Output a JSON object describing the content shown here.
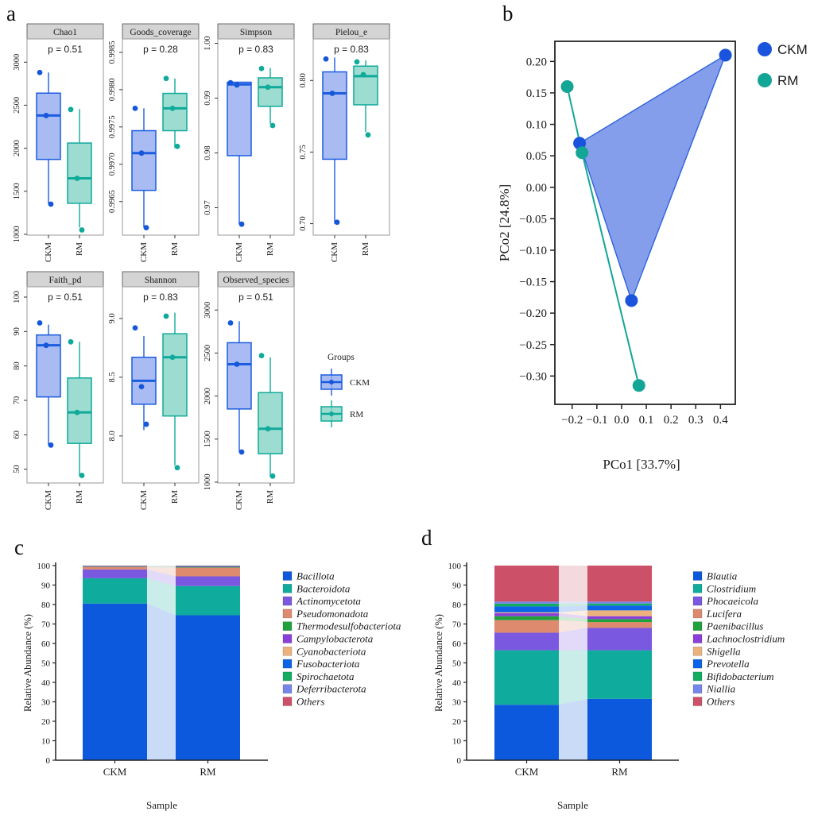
{
  "figure": {
    "panel_labels": {
      "a": "a",
      "b": "b",
      "c": "c",
      "d": "d"
    }
  },
  "groups": {
    "names": [
      "CKM",
      "RM"
    ],
    "colors": {
      "CKM": {
        "stroke": "#1b5ce0",
        "fill": "#93aaf0",
        "point": "#1557d8"
      },
      "RM": {
        "stroke": "#0faa9a",
        "fill": "#85d4c6",
        "point": "#0faa9a"
      }
    }
  },
  "chart_data": [
    {
      "id": "alpha_diversity_boxplots",
      "type": "box",
      "groups": [
        "CKM",
        "RM"
      ],
      "legend": {
        "title": "Groups",
        "items": [
          "CKM",
          "RM"
        ]
      },
      "facets": [
        {
          "title": "Chao1",
          "p_label": "p = 0.51",
          "ylim": [
            990,
            3270
          ],
          "yticks": [
            1000,
            1500,
            2000,
            2500,
            3000
          ],
          "ytick_labels": [
            "1000",
            "1500",
            "2000",
            "2500",
            "3000"
          ],
          "stats": {
            "CKM": {
              "whislo": 1350,
              "q1": 1870,
              "med": 2380,
              "q3": 2640,
              "whishi": 2880,
              "points": [
                2880,
                2380,
                1350
              ]
            },
            "RM": {
              "whislo": 1080,
              "q1": 1360,
              "med": 1650,
              "q3": 2060,
              "whishi": 2455,
              "points": [
                2450,
                1650,
                1050
              ]
            }
          }
        },
        {
          "title": "Goods_coverage",
          "p_label": "p = 0.28",
          "ylim": [
            0.99605,
            0.99868
          ],
          "yticks": [
            0.9965,
            0.997,
            0.9975,
            0.998,
            0.9985
          ],
          "ytick_labels": [
            "0.9965",
            "0.9970",
            "0.9975",
            "0.9980",
            "0.9985"
          ],
          "stats": {
            "CKM": {
              "whislo": 0.99615,
              "q1": 0.99665,
              "med": 0.99715,
              "q3": 0.99745,
              "whishi": 0.99775,
              "points": [
                0.99775,
                0.99715,
                0.99615
              ]
            },
            "RM": {
              "whislo": 0.99722,
              "q1": 0.99745,
              "med": 0.99775,
              "q3": 0.99795,
              "whishi": 0.99815,
              "points": [
                0.99815,
                0.99775,
                0.99724
              ]
            }
          }
        },
        {
          "title": "Simpson",
          "p_label": "p = 0.83",
          "ylim": [
            0.965,
            1.0008
          ],
          "yticks": [
            0.97,
            0.98,
            0.99,
            1.0
          ],
          "ytick_labels": [
            "0.97",
            "0.98",
            "0.99",
            "1.00"
          ],
          "stats": {
            "CKM": {
              "whislo": 0.967,
              "q1": 0.9795,
              "med": 0.9925,
              "q3": 0.9929,
              "whishi": 0.9929,
              "points": [
                0.9928,
                0.9924,
                0.967
              ]
            },
            "RM": {
              "whislo": 0.9853,
              "q1": 0.9885,
              "med": 0.992,
              "q3": 0.9937,
              "whishi": 0.9955,
              "points": [
                0.9954,
                0.992,
                0.985
              ]
            }
          }
        },
        {
          "title": "Pielou_e",
          "p_label": "p = 0.83",
          "ylim": [
            0.692,
            0.829
          ],
          "yticks": [
            0.7,
            0.75,
            0.8
          ],
          "ytick_labels": [
            "0.70",
            "0.75",
            "0.80"
          ],
          "stats": {
            "CKM": {
              "whislo": 0.7,
              "q1": 0.745,
              "med": 0.791,
              "q3": 0.806,
              "whishi": 0.816,
              "points": [
                0.815,
                0.791,
                0.701
              ]
            },
            "RM": {
              "whislo": 0.764,
              "q1": 0.783,
              "med": 0.803,
              "q3": 0.81,
              "whishi": 0.814,
              "points": [
                0.813,
                0.804,
                0.762
              ]
            }
          }
        },
        {
          "title": "Faith_pd",
          "p_label": "p = 0.51",
          "ylim": [
            46,
            103
          ],
          "yticks": [
            50,
            60,
            70,
            80,
            90,
            100
          ],
          "ytick_labels": [
            "50",
            "60",
            "70",
            "80",
            "90",
            "100"
          ],
          "stats": {
            "CKM": {
              "whislo": 57,
              "q1": 71,
              "med": 86,
              "q3": 89,
              "whishi": 92,
              "points": [
                92.5,
                86,
                57
              ]
            },
            "RM": {
              "whislo": 48,
              "q1": 57.5,
              "med": 66.5,
              "q3": 76.5,
              "whishi": 87,
              "points": [
                87,
                66.5,
                48.2
              ]
            }
          }
        },
        {
          "title": "Shannon",
          "p_label": "p = 0.83",
          "ylim": [
            7.6,
            9.27
          ],
          "yticks": [
            8.0,
            8.5,
            9.0
          ],
          "ytick_labels": [
            "8.0",
            "8.5",
            "9.0"
          ],
          "stats": {
            "CKM": {
              "whislo": 8.05,
              "q1": 8.27,
              "med": 8.47,
              "q3": 8.67,
              "whishi": 8.85,
              "points": [
                8.92,
                8.42,
                8.1
              ]
            },
            "RM": {
              "whislo": 7.75,
              "q1": 8.17,
              "med": 8.67,
              "q3": 8.87,
              "whishi": 9.05,
              "points": [
                9.02,
                8.67,
                7.73
              ]
            }
          }
        },
        {
          "title": "Observed_species",
          "p_label": "p = 0.51",
          "ylim": [
            990,
            3270
          ],
          "yticks": [
            1000,
            1500,
            2000,
            2500,
            3000
          ],
          "ytick_labels": [
            "1000",
            "1500",
            "2000",
            "2500",
            "3000"
          ],
          "stats": {
            "CKM": {
              "whislo": 1350,
              "q1": 1850,
              "med": 2370,
              "q3": 2620,
              "whishi": 2870,
              "points": [
                2850,
                2370,
                1350
              ]
            },
            "RM": {
              "whislo": 1060,
              "q1": 1330,
              "med": 1620,
              "q3": 2040,
              "whishi": 2450,
              "points": [
                2470,
                1620,
                1070
              ]
            }
          }
        }
      ]
    },
    {
      "id": "pcoa",
      "type": "scatter",
      "xlabel": "PCo1 [33.7%]",
      "ylabel": "PCo2 [24.8%]",
      "xlim": [
        -0.27,
        0.46
      ],
      "ylim": [
        -0.345,
        0.232
      ],
      "xticks": [
        -0.2,
        -0.1,
        0.0,
        0.1,
        0.2,
        0.3,
        0.4
      ],
      "xtick_labels": [
        "−0.2",
        "−0.1",
        "0.0",
        "0.1",
        "0.2",
        "0.3",
        "0.4"
      ],
      "yticks": [
        0.2,
        0.15,
        0.1,
        0.05,
        0.0,
        -0.05,
        -0.1,
        -0.15,
        -0.2,
        -0.25,
        -0.3
      ],
      "ytick_labels": [
        "0.20",
        "0.15",
        "0.10",
        "0.05",
        "0.00",
        "−0.05",
        "−0.10",
        "−0.15",
        "−0.20",
        "−0.25",
        "−0.30"
      ],
      "series": [
        {
          "name": "CKM",
          "color": "#1b54dc",
          "hull_fill": "#7e99ea",
          "points": [
            [
              0.42,
              0.21
            ],
            [
              -0.17,
              0.07
            ],
            [
              0.04,
              -0.18
            ]
          ]
        },
        {
          "name": "RM",
          "color": "#13a596",
          "points": [
            [
              -0.22,
              0.16
            ],
            [
              -0.16,
              0.055
            ],
            [
              0.07,
              -0.315
            ]
          ]
        }
      ],
      "legend": [
        "CKM",
        "RM"
      ]
    },
    {
      "id": "phylum_relative_abundance",
      "type": "bar",
      "stacked": true,
      "categories": [
        "CKM",
        "RM"
      ],
      "xlabel": "Sample",
      "ylabel": "Relative Abundance (%)",
      "ylim": [
        0,
        100
      ],
      "yticks": [
        0,
        10,
        20,
        30,
        40,
        50,
        60,
        70,
        80,
        90,
        100
      ],
      "series": [
        {
          "name": "Bacillota",
          "color": "#0c59dd",
          "values": [
            80.5,
            74.5
          ]
        },
        {
          "name": "Bacteroidota",
          "color": "#0fab9c",
          "values": [
            13.0,
            15.0
          ]
        },
        {
          "name": "Actinomycetota",
          "color": "#7a58e0",
          "values": [
            4.5,
            5.0
          ]
        },
        {
          "name": "Pseudomonadota",
          "color": "#dd8a6e",
          "values": [
            1.3,
            4.5
          ]
        },
        {
          "name": "Thermodesulfobacteriota",
          "color": "#1fa23c",
          "values": [
            0.2,
            0.3
          ]
        },
        {
          "name": "Campylobacterota",
          "color": "#8a3fd8",
          "values": [
            0.1,
            0.1
          ]
        },
        {
          "name": "Cyanobacteriota",
          "color": "#ecb27e",
          "values": [
            0.1,
            0.1
          ]
        },
        {
          "name": "Fusobacteriota",
          "color": "#0d64e8",
          "values": [
            0.05,
            0.1
          ]
        },
        {
          "name": "Spirochaetota",
          "color": "#16ab63",
          "values": [
            0.15,
            0.2
          ]
        },
        {
          "name": "Deferribacterota",
          "color": "#7585ea",
          "values": [
            0.05,
            0.1
          ]
        },
        {
          "name": "Others",
          "color": "#cc5168",
          "values": [
            0.05,
            0.1
          ]
        }
      ]
    },
    {
      "id": "genus_relative_abundance",
      "type": "bar",
      "stacked": true,
      "categories": [
        "CKM",
        "RM"
      ],
      "xlabel": "Sample",
      "ylabel": "Relative Abundance (%)",
      "ylim": [
        0,
        100
      ],
      "yticks": [
        0,
        10,
        20,
        30,
        40,
        50,
        60,
        70,
        80,
        90,
        100
      ],
      "series": [
        {
          "name": "Blautia",
          "color": "#0c59dd",
          "values": [
            28.5,
            31.5
          ]
        },
        {
          "name": "Clostridium",
          "color": "#0fab9c",
          "values": [
            28.0,
            25.0
          ]
        },
        {
          "name": "Phocaeicola",
          "color": "#7a58e0",
          "values": [
            9.0,
            11.5
          ]
        },
        {
          "name": "Lucifera",
          "color": "#dd8a6e",
          "values": [
            6.5,
            3.0
          ]
        },
        {
          "name": "Paenibacillus",
          "color": "#1fa23c",
          "values": [
            2.0,
            1.5
          ]
        },
        {
          "name": "Lachnoclostridium",
          "color": "#8a3fd8",
          "values": [
            1.5,
            1.5
          ]
        },
        {
          "name": "Shigella",
          "color": "#ecb27e",
          "values": [
            0.5,
            3.0
          ]
        },
        {
          "name": "Prevotella",
          "color": "#0d64e8",
          "values": [
            3.0,
            2.5
          ]
        },
        {
          "name": "Bifidobacterium",
          "color": "#16ab63",
          "values": [
            1.5,
            1.0
          ]
        },
        {
          "name": "Niallia",
          "color": "#7585ea",
          "values": [
            1.0,
            1.0
          ]
        },
        {
          "name": "Others",
          "color": "#cc5168",
          "values": [
            18.5,
            18.5
          ]
        }
      ]
    }
  ]
}
